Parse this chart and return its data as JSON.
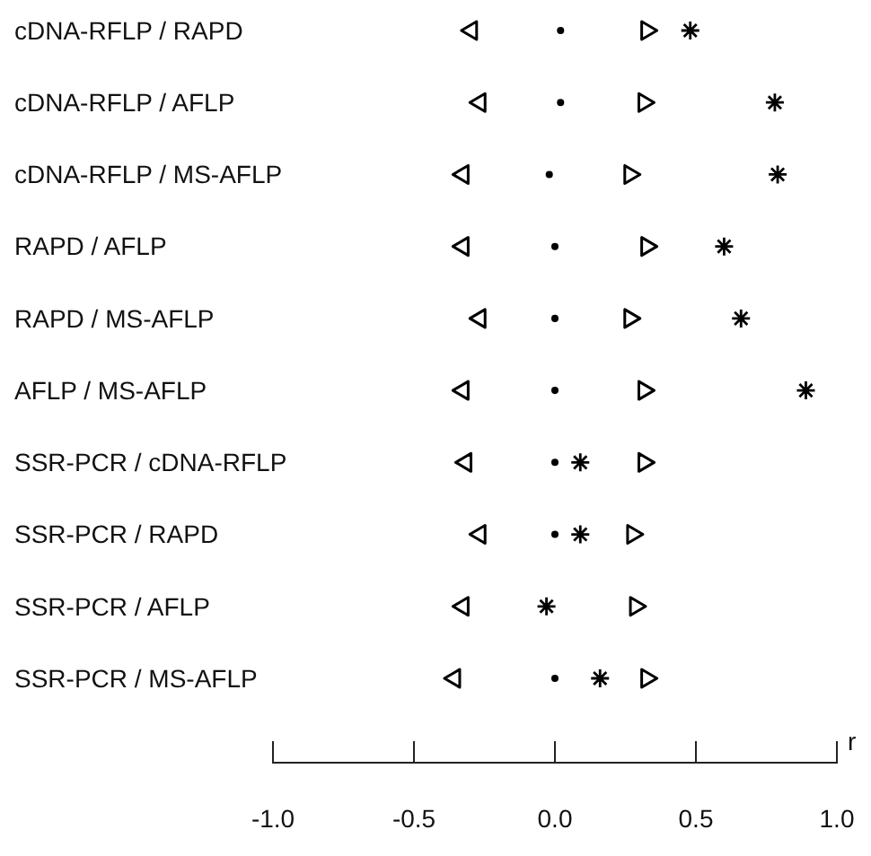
{
  "chart_data": {
    "type": "scatter",
    "orientation": "horizontal",
    "xlabel": "r",
    "categories": [
      "cDNA-RFLP / RAPD",
      "cDNA-RFLP / AFLP",
      "cDNA-RFLP / MS-AFLP",
      "RAPD / AFLP",
      "RAPD / MS-AFLP",
      "AFLP / MS-AFLP",
      "SSR-PCR / cDNA-RFLP",
      "SSR-PCR / RAPD",
      "SSR-PCR / AFLP",
      "SSR-PCR / MS-AFLP"
    ],
    "series": [
      {
        "color": "#000000",
        "marker": "triangle-left",
        "values": [
          -0.3,
          -0.27,
          -0.33,
          -0.33,
          -0.27,
          -0.33,
          -0.32,
          -0.27,
          -0.33,
          -0.36
        ]
      },
      {
        "color": "#000000",
        "marker": "circle",
        "values": [
          0.02,
          0.02,
          -0.02,
          0.0,
          0.0,
          0.0,
          0.0,
          0.0,
          null,
          0.0
        ]
      },
      {
        "color": "#000000",
        "marker": "triangle-right",
        "values": [
          0.33,
          0.32,
          0.27,
          0.33,
          0.27,
          0.32,
          0.32,
          0.28,
          0.29,
          0.33
        ]
      },
      {
        "color": "#000000",
        "marker": "cross",
        "values": [
          0.48,
          0.78,
          0.79,
          0.6,
          0.66,
          0.89,
          0.09,
          0.09,
          -0.03,
          0.16
        ]
      }
    ],
    "xlim": [
      -1.0,
      1.0
    ],
    "xticks": [
      {
        "value": -1,
        "label": "-1.0"
      },
      {
        "value": -0.5,
        "label": "-0.5"
      },
      {
        "value": 0,
        "label": "0.0"
      },
      {
        "value": 0.5,
        "label": "0.5"
      },
      {
        "value": 1,
        "label": "1.0"
      }
    ],
    "grid": false
  }
}
